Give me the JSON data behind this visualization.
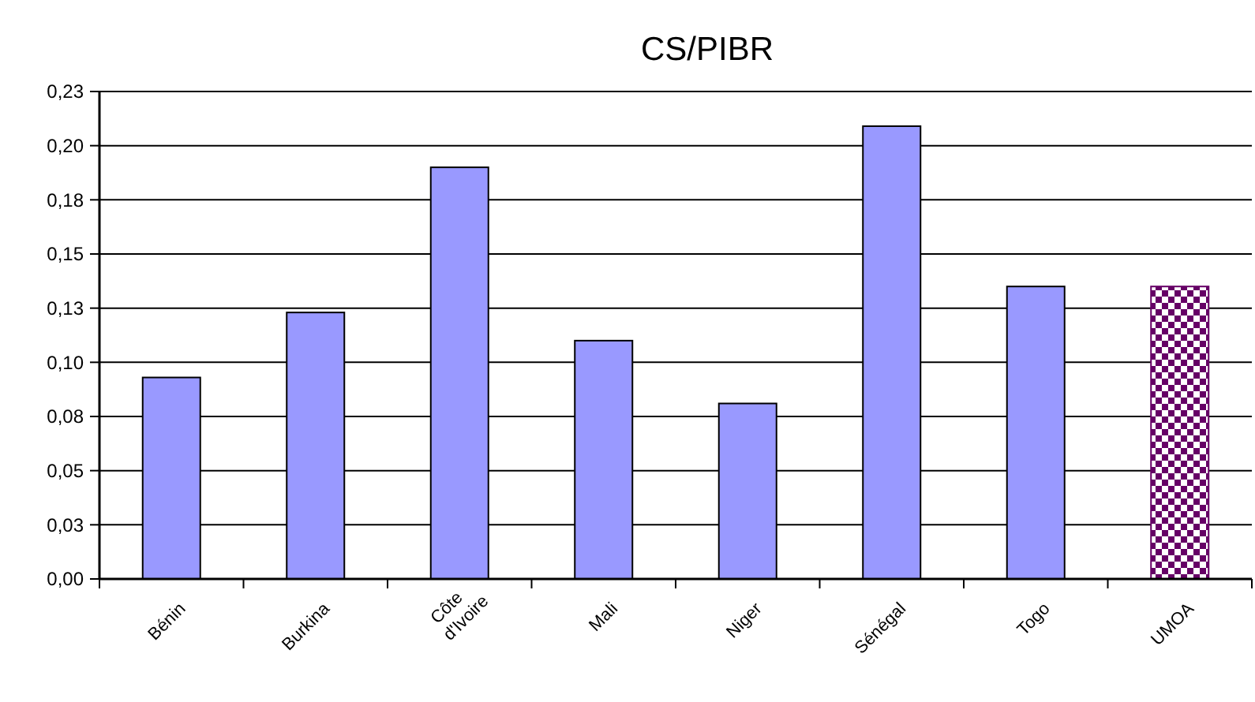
{
  "chart_data": {
    "type": "bar",
    "title": "CS/PIBR",
    "categories": [
      "Bénin",
      "Burkina",
      "Côte d'Ivoire",
      "Mali",
      "Niger",
      "Sénégal",
      "Togo",
      "UMOA"
    ],
    "values": [
      0.093,
      0.123,
      0.19,
      0.11,
      0.081,
      0.209,
      0.135,
      0.135
    ],
    "colors": [
      "#9999ff",
      "#9999ff",
      "#9999ff",
      "#9999ff",
      "#9999ff",
      "#9999ff",
      "#9999ff",
      "#660066"
    ],
    "ylim": [
      0,
      0.225
    ],
    "yticks": [
      {
        "value": 0,
        "label": "0,00"
      },
      {
        "value": 0.025,
        "label": "0,03"
      },
      {
        "value": 0.05,
        "label": "0,05"
      },
      {
        "value": 0.075,
        "label": "0,08"
      },
      {
        "value": 0.1,
        "label": "0,10"
      },
      {
        "value": 0.125,
        "label": "0,13"
      },
      {
        "value": 0.15,
        "label": "0,15"
      },
      {
        "value": 0.175,
        "label": "0,18"
      },
      {
        "value": 0.2,
        "label": "0,20"
      },
      {
        "value": 0.225,
        "label": "0,23"
      }
    ],
    "grid": "y"
  }
}
